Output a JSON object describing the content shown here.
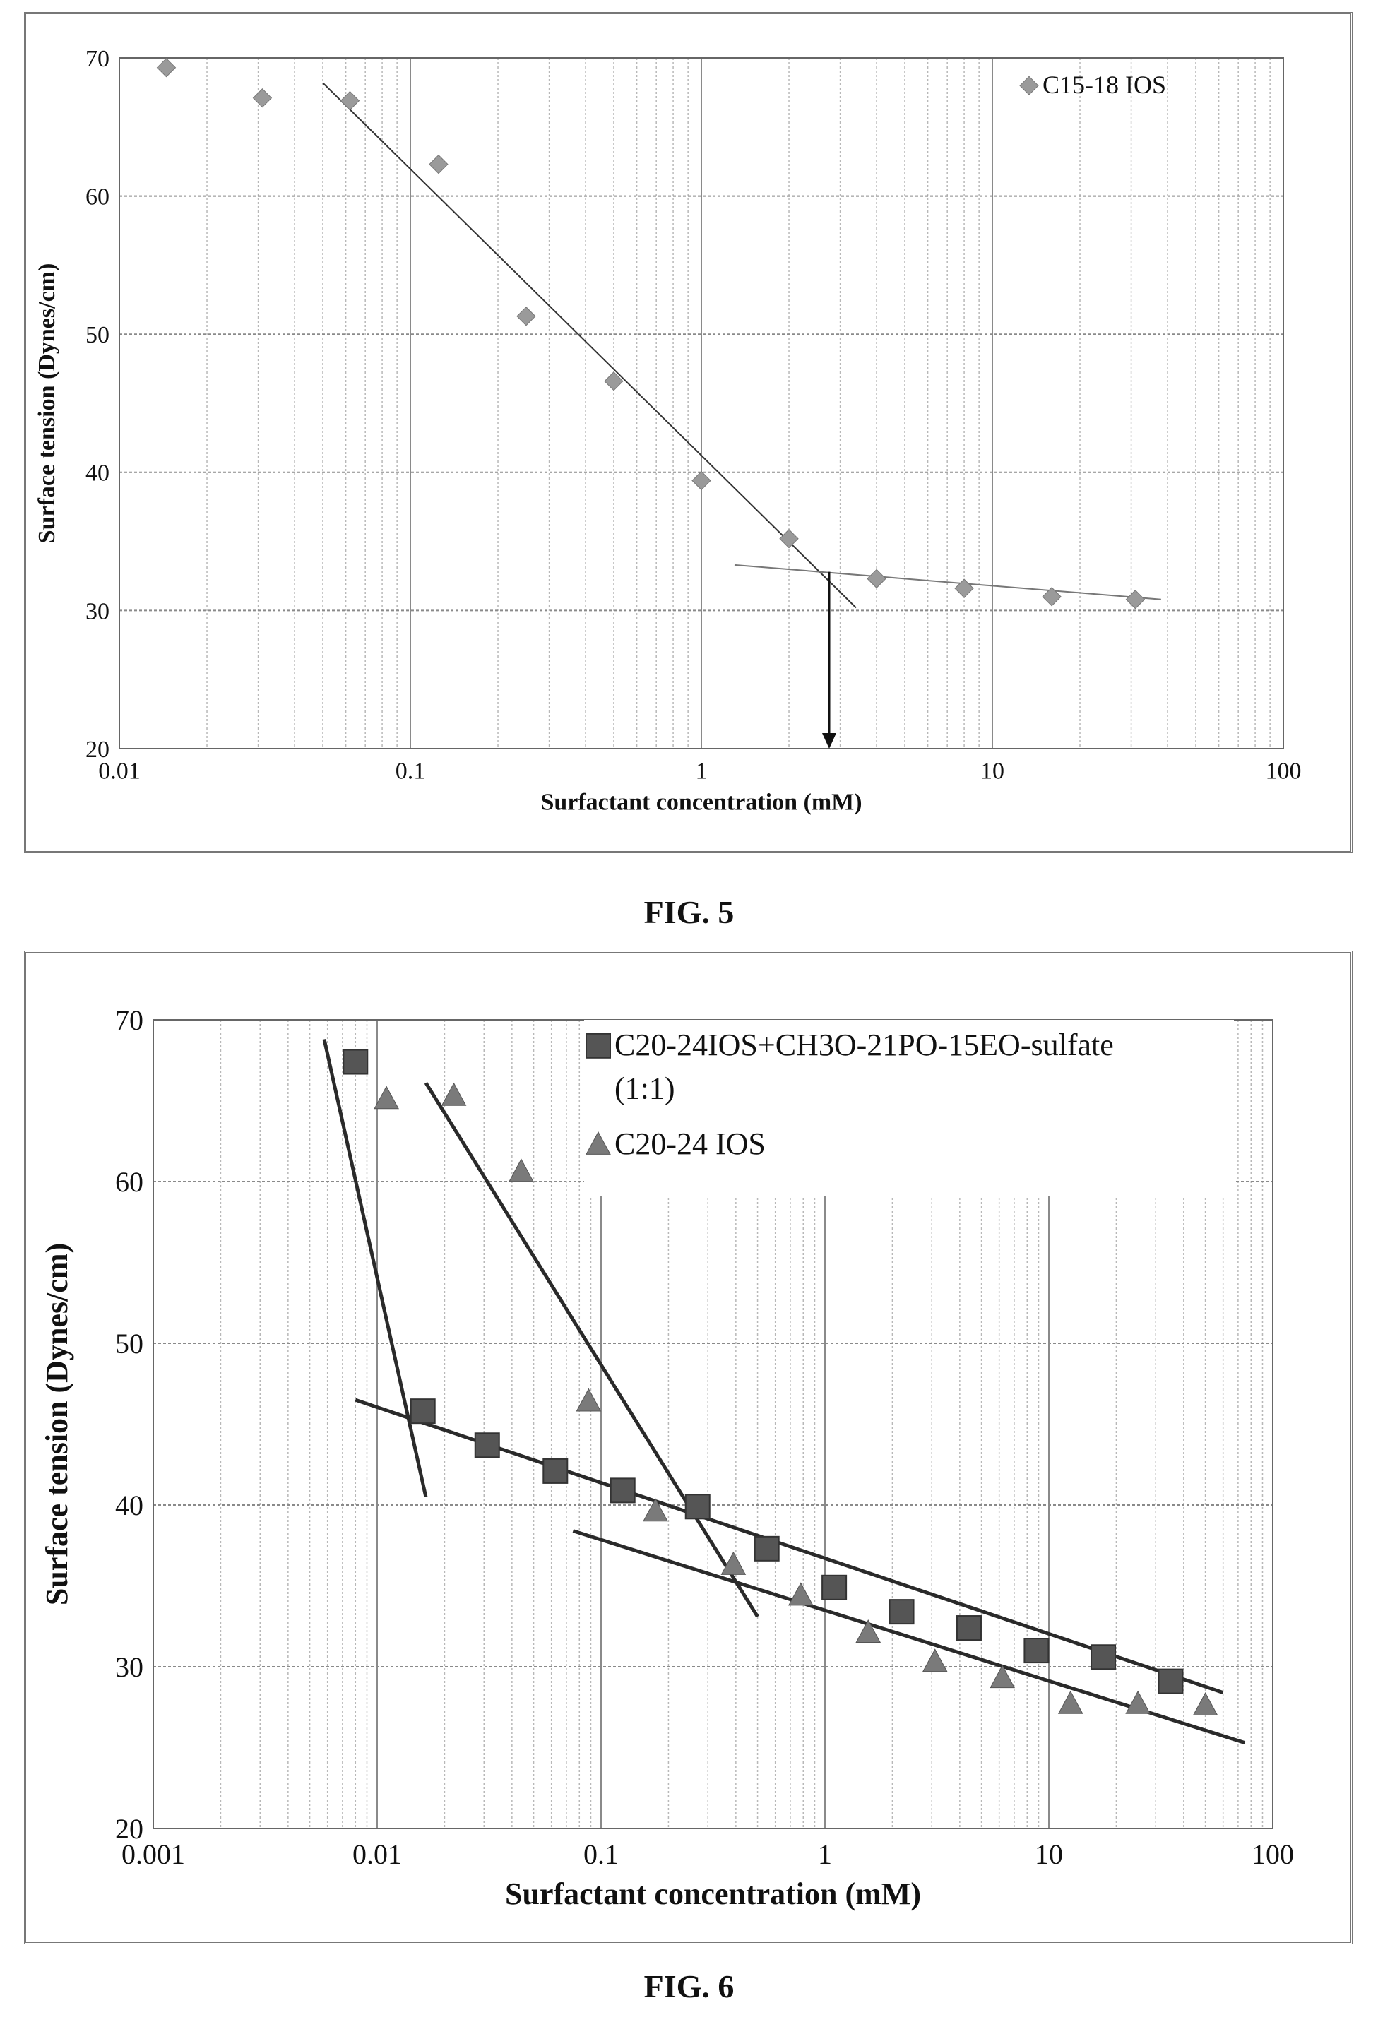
{
  "figures": [
    {
      "caption": "FIG. 5",
      "chart_data": {
        "type": "scatter",
        "xscale": "log",
        "xlim": [
          0.01,
          100
        ],
        "ylim": [
          20,
          70
        ],
        "xlabel": "Surfactant concentration (mM)",
        "ylabel": "Surface tension (Dynes/cm)",
        "xticks": [
          "0.01",
          "0.1",
          "1",
          "10",
          "100"
        ],
        "yticks": [
          "20",
          "30",
          "40",
          "50",
          "60",
          "70"
        ],
        "grid": true,
        "legend_position": "top-right",
        "series": [
          {
            "name": "C15-18 IOS",
            "marker": "diamond",
            "color": "#9a9a9a",
            "x": [
              0.0145,
              0.031,
              0.062,
              0.125,
              0.25,
              0.5,
              1.0,
              2.0,
              4.0,
              8.0,
              16.0,
              31.0
            ],
            "y": [
              69.3,
              67.1,
              66.9,
              62.3,
              51.3,
              46.6,
              39.4,
              35.2,
              32.3,
              31.6,
              31.0,
              30.8
            ]
          }
        ],
        "fit_lines": [
          {
            "x": [
              0.05,
              3.4
            ],
            "y": [
              68.2,
              30.2
            ]
          },
          {
            "x": [
              1.3,
              38.0
            ],
            "y": [
              33.3,
              30.8
            ]
          }
        ],
        "annotations": [
          {
            "type": "arrow",
            "x": 2.75,
            "y_from": 32.8,
            "y_to": 20.0
          }
        ]
      }
    },
    {
      "caption": "FIG. 6",
      "chart_data": {
        "type": "scatter",
        "xscale": "log",
        "xlim": [
          0.001,
          100
        ],
        "ylim": [
          20,
          70
        ],
        "xlabel": "Surfactant concentration (mM)",
        "ylabel": "Surface tension (Dynes/cm)",
        "xticks": [
          "0.001",
          "0.01",
          "0.1",
          "1",
          "10",
          "100"
        ],
        "yticks": [
          "20",
          "30",
          "40",
          "50",
          "60",
          "70"
        ],
        "grid": true,
        "legend_position": "top-right",
        "series": [
          {
            "name": "C20-24IOS+CH3O-21PO-15EO-sulfate",
            "name_line2": "(1:1)",
            "marker": "square",
            "color": "#555555",
            "x": [
              0.008,
              0.016,
              0.031,
              0.0625,
              0.125,
              0.27,
              0.55,
              1.1,
              2.2,
              4.4,
              8.8,
              17.5,
              35.0
            ],
            "y": [
              67.4,
              45.8,
              43.7,
              42.1,
              40.9,
              39.9,
              37.3,
              34.9,
              33.4,
              32.4,
              31.0,
              30.6,
              29.1
            ]
          },
          {
            "name": "C20-24 IOS",
            "marker": "triangle",
            "color": "#7a7a7a",
            "x": [
              0.011,
              0.022,
              0.044,
              0.088,
              0.175,
              0.39,
              0.78,
              1.56,
              3.1,
              6.2,
              12.5,
              25.0,
              50.0
            ],
            "y": [
              65.1,
              65.3,
              60.6,
              46.4,
              39.6,
              36.3,
              34.4,
              32.1,
              30.3,
              29.3,
              27.7,
              27.7,
              27.6
            ]
          }
        ],
        "fit_lines": [
          {
            "x": [
              0.0058,
              0.0165
            ],
            "y": [
              68.8,
              40.5
            ]
          },
          {
            "x": [
              0.0165,
              0.5
            ],
            "y": [
              66.1,
              33.1
            ]
          },
          {
            "x": [
              0.008,
              60.0
            ],
            "y": [
              46.5,
              28.4
            ]
          },
          {
            "x": [
              0.075,
              75.0
            ],
            "y": [
              38.4,
              25.3
            ]
          }
        ]
      }
    }
  ]
}
